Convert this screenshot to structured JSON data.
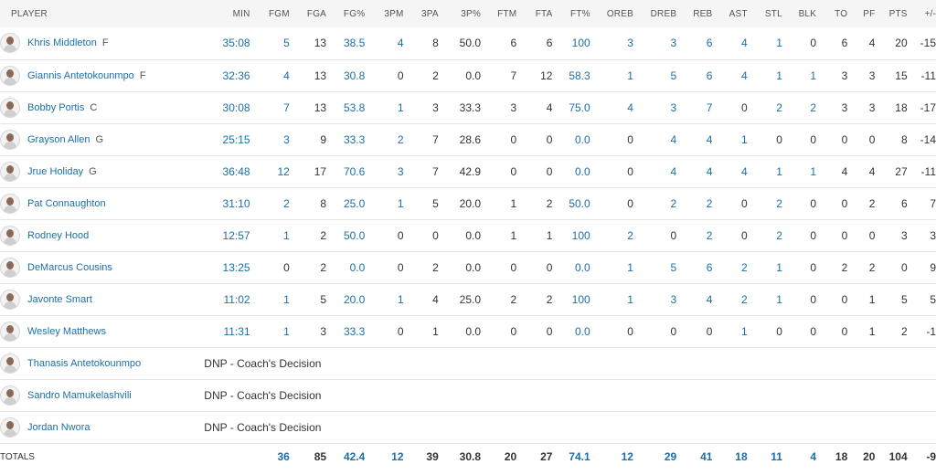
{
  "headers": [
    "PLAYER",
    "MIN",
    "FGM",
    "FGA",
    "FG%",
    "3PM",
    "3PA",
    "3P%",
    "FTM",
    "FTA",
    "FT%",
    "OREB",
    "DREB",
    "REB",
    "AST",
    "STL",
    "BLK",
    "TO",
    "PF",
    "PTS",
    "+/-"
  ],
  "link_columns": [
    1,
    2,
    4,
    5,
    10,
    11,
    12,
    13,
    14,
    15,
    16
  ],
  "players": [
    {
      "name": "Khris Middleton",
      "pos": "F",
      "stats": [
        "35:08",
        "5",
        "13",
        "38.5",
        "4",
        "8",
        "50.0",
        "6",
        "6",
        "100",
        "3",
        "3",
        "6",
        "4",
        "1",
        "0",
        "6",
        "4",
        "20",
        "-15"
      ]
    },
    {
      "name": "Giannis Antetokounmpo",
      "pos": "F",
      "stats": [
        "32:36",
        "4",
        "13",
        "30.8",
        "0",
        "2",
        "0.0",
        "7",
        "12",
        "58.3",
        "1",
        "5",
        "6",
        "4",
        "1",
        "1",
        "3",
        "3",
        "15",
        "-11"
      ]
    },
    {
      "name": "Bobby Portis",
      "pos": "C",
      "stats": [
        "30:08",
        "7",
        "13",
        "53.8",
        "1",
        "3",
        "33.3",
        "3",
        "4",
        "75.0",
        "4",
        "3",
        "7",
        "0",
        "2",
        "2",
        "3",
        "3",
        "18",
        "-17"
      ]
    },
    {
      "name": "Grayson Allen",
      "pos": "G",
      "stats": [
        "25:15",
        "3",
        "9",
        "33.3",
        "2",
        "7",
        "28.6",
        "0",
        "0",
        "0.0",
        "0",
        "4",
        "4",
        "1",
        "0",
        "0",
        "0",
        "0",
        "8",
        "-14"
      ]
    },
    {
      "name": "Jrue Holiday",
      "pos": "G",
      "stats": [
        "36:48",
        "12",
        "17",
        "70.6",
        "3",
        "7",
        "42.9",
        "0",
        "0",
        "0.0",
        "0",
        "4",
        "4",
        "4",
        "1",
        "1",
        "4",
        "4",
        "27",
        "-11"
      ]
    },
    {
      "name": "Pat Connaughton",
      "pos": "",
      "stats": [
        "31:10",
        "2",
        "8",
        "25.0",
        "1",
        "5",
        "20.0",
        "1",
        "2",
        "50.0",
        "0",
        "2",
        "2",
        "0",
        "2",
        "0",
        "0",
        "2",
        "6",
        "7"
      ]
    },
    {
      "name": "Rodney Hood",
      "pos": "",
      "stats": [
        "12:57",
        "1",
        "2",
        "50.0",
        "0",
        "0",
        "0.0",
        "1",
        "1",
        "100",
        "2",
        "0",
        "2",
        "0",
        "2",
        "0",
        "0",
        "0",
        "3",
        "3"
      ]
    },
    {
      "name": "DeMarcus Cousins",
      "pos": "",
      "stats": [
        "13:25",
        "0",
        "2",
        "0.0",
        "0",
        "2",
        "0.0",
        "0",
        "0",
        "0.0",
        "1",
        "5",
        "6",
        "2",
        "1",
        "0",
        "2",
        "2",
        "0",
        "9"
      ]
    },
    {
      "name": "Javonte Smart",
      "pos": "",
      "stats": [
        "11:02",
        "1",
        "5",
        "20.0",
        "1",
        "4",
        "25.0",
        "2",
        "2",
        "100",
        "1",
        "3",
        "4",
        "2",
        "1",
        "0",
        "0",
        "1",
        "5",
        "5"
      ]
    },
    {
      "name": "Wesley Matthews",
      "pos": "",
      "stats": [
        "11:31",
        "1",
        "3",
        "33.3",
        "0",
        "1",
        "0.0",
        "0",
        "0",
        "0.0",
        "0",
        "0",
        "0",
        "1",
        "0",
        "0",
        "0",
        "1",
        "2",
        "-1"
      ]
    },
    {
      "name": "Thanasis Antetokounmpo",
      "pos": "",
      "dnp": "DNP - Coach's Decision"
    },
    {
      "name": "Sandro Mamukelashvili",
      "pos": "",
      "dnp": "DNP - Coach's Decision"
    },
    {
      "name": "Jordan Nwora",
      "pos": "",
      "dnp": "DNP - Coach's Decision"
    }
  ],
  "totals": {
    "label": "TOTALS",
    "stats": [
      "",
      "36",
      "85",
      "42.4",
      "12",
      "39",
      "30.8",
      "20",
      "27",
      "74.1",
      "12",
      "29",
      "41",
      "18",
      "11",
      "4",
      "18",
      "20",
      "104",
      "-9"
    ]
  },
  "colors": {
    "link": "#1b6fa8",
    "header_bg": "#f5f5f5",
    "row_border": "#e6e6e6"
  }
}
